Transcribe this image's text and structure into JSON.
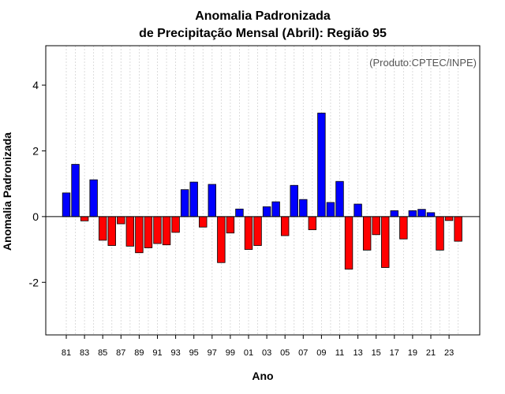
{
  "chart_data": {
    "type": "bar",
    "title_line1": "Anomalia Padronizada",
    "title_line2": "de Precipitação Mensal (Abril): Região 95",
    "credit": "(Produto:CPTEC/INPE)",
    "xlabel": "Ano",
    "ylabel": "Anomalia Padronizada",
    "ylim": [
      -3.6,
      5.2
    ],
    "yticks": [
      -2,
      0,
      2,
      4
    ],
    "ytick_labels": [
      "-2",
      "0",
      "2",
      "4"
    ],
    "grid": true,
    "categories": [
      "81",
      "82",
      "83",
      "84",
      "85",
      "86",
      "87",
      "88",
      "89",
      "90",
      "91",
      "92",
      "93",
      "94",
      "95",
      "96",
      "97",
      "98",
      "99",
      "00",
      "01",
      "02",
      "03",
      "04",
      "05",
      "06",
      "07",
      "08",
      "09",
      "10",
      "11",
      "12",
      "13",
      "14",
      "15",
      "16",
      "17",
      "18",
      "19",
      "20",
      "21",
      "22",
      "23",
      "24"
    ],
    "xtick_labels": [
      "81",
      "83",
      "85",
      "87",
      "89",
      "91",
      "93",
      "95",
      "97",
      "99",
      "01",
      "03",
      "05",
      "07",
      "09",
      "11",
      "13",
      "15",
      "17",
      "19",
      "21",
      "23"
    ],
    "values": [
      0.72,
      1.59,
      -0.13,
      1.12,
      -0.72,
      -0.88,
      -0.22,
      -0.9,
      -1.1,
      -0.95,
      -0.82,
      -0.86,
      -0.48,
      0.82,
      1.05,
      -0.32,
      0.98,
      -1.4,
      -0.5,
      0.23,
      -1.0,
      -0.88,
      0.3,
      0.45,
      -0.58,
      0.95,
      0.52,
      -0.4,
      3.15,
      0.43,
      1.07,
      -1.6,
      0.38,
      -1.02,
      -0.55,
      -1.55,
      0.18,
      -0.68,
      0.18,
      0.22,
      0.12,
      -1.02,
      -0.12,
      -0.75
    ],
    "colors": {
      "positive": "#0000ff",
      "negative": "#ff0000",
      "outline": "#000000",
      "grid": "#d3d3d3"
    }
  }
}
